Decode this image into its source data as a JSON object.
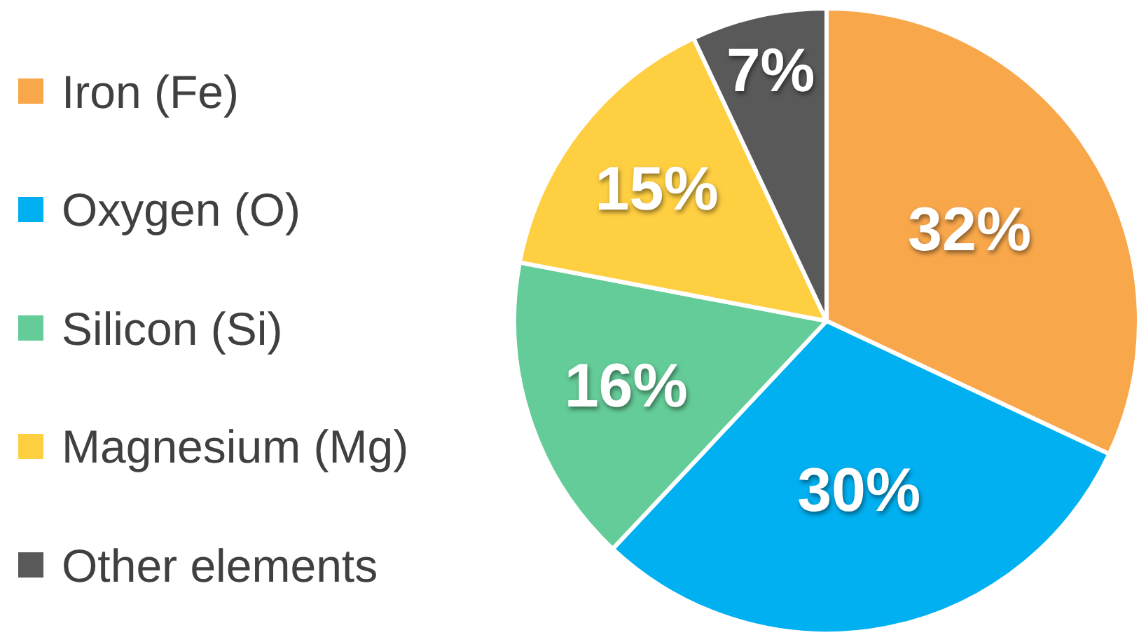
{
  "chart_data": {
    "type": "pie",
    "categories": [
      "Iron (Fe)",
      "Oxygen (O)",
      "Silicon (Si)",
      "Magnesium (Mg)",
      "Other elements"
    ],
    "values": [
      32,
      30,
      16,
      15,
      7
    ],
    "colors": [
      "#f9a74b",
      "#00b0f0",
      "#64cc98",
      "#ffcf42",
      "#595959"
    ],
    "value_labels": [
      "32%",
      "30%",
      "16%",
      "15%",
      "7%"
    ],
    "legend": "left"
  }
}
